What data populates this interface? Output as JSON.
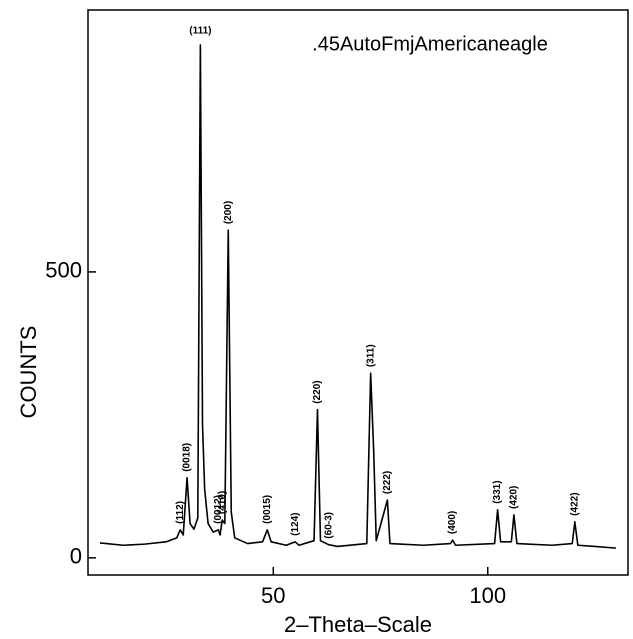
{
  "chart_data": {
    "type": "line",
    "title": ".45AutoFmjAmericaneagle",
    "xlabel": "2–Theta–Scale",
    "ylabel": "COUNTS",
    "xlim": [
      6.8,
      132.7
    ],
    "ylim": [
      -30,
      958
    ],
    "xticks": [
      50,
      100
    ],
    "yticks": [
      0,
      500
    ],
    "series": [
      {
        "color": "#000000",
        "x": [
          9.6,
          15,
          20,
          25,
          27.5,
          28.3,
          29.0,
          29.9,
          30.6,
          31.5,
          32.4,
          33.0,
          33.5,
          34.0,
          34.8,
          36.0,
          37.2,
          37.6,
          38.1,
          38.7,
          39.5,
          40.2,
          41,
          44,
          47.5,
          48.6,
          49.5,
          53,
          55.1,
          56,
          59.5,
          60.3,
          61,
          62.9,
          65,
          71.8,
          72.7,
          73.4,
          74,
          76.6,
          77.2,
          85,
          91.3,
          91.8,
          92.5,
          101.6,
          102.3,
          103,
          105.5,
          106.1,
          106.8,
          115,
          119.7,
          120.3,
          121,
          125,
          129.9
        ],
        "values": [
          26,
          22,
          24,
          28,
          35,
          49,
          40,
          140,
          60,
          50,
          70,
          897,
          232,
          120,
          60,
          45,
          49,
          40,
          66,
          60,
          573,
          80,
          35,
          25,
          28,
          49,
          28,
          22,
          28,
          22,
          30,
          259,
          30,
          23,
          20,
          25,
          323,
          189,
          30,
          101,
          25,
          22,
          25,
          31,
          22,
          25,
          84,
          28,
          28,
          75,
          25,
          22,
          25,
          63,
          22,
          20,
          17
        ]
      }
    ],
    "annotations": [
      {
        "text": "(112)",
        "x": 28.3,
        "y": 49
      },
      {
        "text": "(0018)",
        "x": 29.9,
        "y": 140
      },
      {
        "text": "(111)",
        "x": 33.0,
        "y": 897
      },
      {
        "text": "(0012)",
        "x": 37.2,
        "y": 49
      },
      {
        "text": "(410)",
        "x": 38.1,
        "y": 66
      },
      {
        "text": "(200)",
        "x": 39.5,
        "y": 573
      },
      {
        "text": "(0015)",
        "x": 48.6,
        "y": 49
      },
      {
        "text": "(124)",
        "x": 55.1,
        "y": 28
      },
      {
        "text": "(220)",
        "x": 60.3,
        "y": 259
      },
      {
        "text": "(60-3)",
        "x": 62.9,
        "y": 23
      },
      {
        "text": "(311)",
        "x": 72.7,
        "y": 323
      },
      {
        "text": "(222)",
        "x": 76.6,
        "y": 101
      },
      {
        "text": "(400)",
        "x": 91.8,
        "y": 31
      },
      {
        "text": "(331)",
        "x": 102.3,
        "y": 84
      },
      {
        "text": "(420)",
        "x": 106.1,
        "y": 75
      },
      {
        "text": "(422)",
        "x": 120.3,
        "y": 63
      }
    ]
  }
}
